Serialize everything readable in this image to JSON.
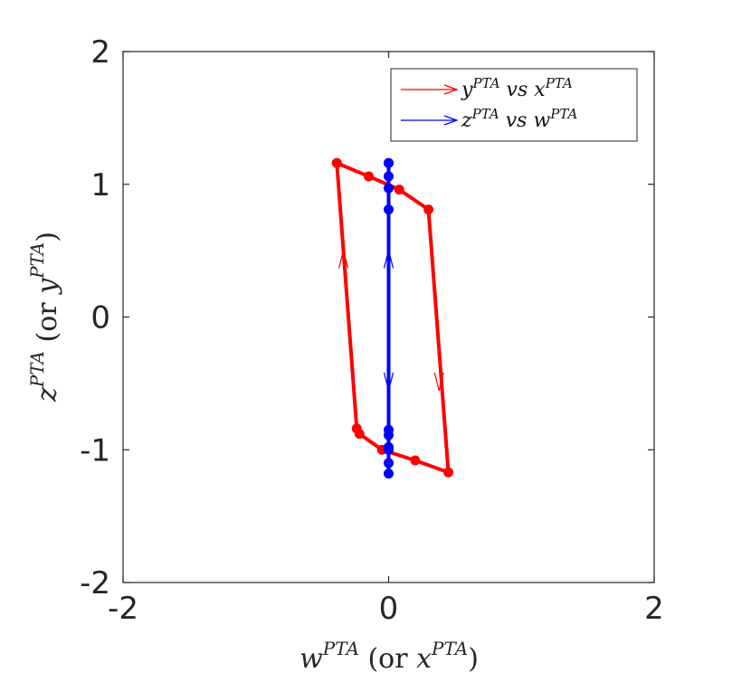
{
  "chart_data": {
    "type": "line",
    "xlabel": {
      "base": "w",
      "sup": "PTA",
      "mid": " (or ",
      "base2": "x",
      "sup2": "PTA",
      "end": ")"
    },
    "ylabel": {
      "base": "z",
      "sup": "PTA",
      "mid": " (or ",
      "base2": "y",
      "sup2": "PTA",
      "end": ")"
    },
    "xlim": [
      -2,
      2
    ],
    "ylim": [
      -2,
      2
    ],
    "x_ticks": [
      "-2",
      "0",
      "2"
    ],
    "y_ticks": [
      "-2",
      "-1",
      "0",
      "1",
      "2"
    ],
    "grid": false,
    "legend_position": "top-right",
    "series": [
      {
        "name": {
          "a": "y",
          "asup": "PTA",
          "vs": " vs ",
          "b": "x",
          "bsup": "PTA"
        },
        "color": "#ff0000",
        "x": [
          -0.39,
          -0.15,
          0.08,
          0.3,
          0.45,
          0.2,
          -0.05,
          -0.22,
          -0.24,
          -0.39
        ],
        "y": [
          1.16,
          1.06,
          0.96,
          0.81,
          -1.17,
          -1.08,
          -1.0,
          -0.88,
          -0.84,
          1.16
        ],
        "arrows": [
          {
            "x": -0.34,
            "y": 0.45,
            "dir": "up"
          },
          {
            "x": 0.38,
            "y": -0.5,
            "dir": "down"
          }
        ]
      },
      {
        "name": {
          "a": "z",
          "asup": "PTA",
          "vs": " vs ",
          "b": "w",
          "bsup": "PTA"
        },
        "color": "#0000ff",
        "x": [
          0,
          0,
          0,
          0,
          0,
          0,
          0,
          0,
          0,
          0,
          0
        ],
        "y": [
          1.16,
          1.06,
          0.97,
          0.81,
          -0.85,
          -0.89,
          -0.98,
          -1.0,
          -1.1,
          -1.18,
          1.16
        ],
        "arrows": [
          {
            "x": 0,
            "y": 0.45,
            "dir": "up"
          },
          {
            "x": 0,
            "y": -0.5,
            "dir": "down"
          }
        ]
      }
    ]
  }
}
